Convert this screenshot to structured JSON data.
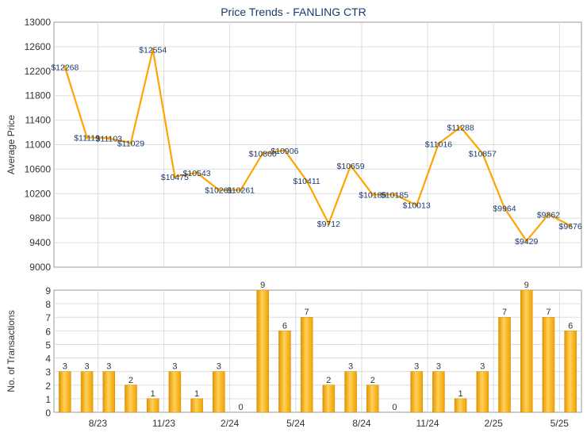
{
  "chart_data": [
    {
      "type": "line",
      "title": "Price Trends - FANLING CTR",
      "ylabel": "Average Price",
      "ylim": [
        9000,
        13000
      ],
      "yticks": [
        9000,
        9400,
        9800,
        10200,
        10600,
        11000,
        11400,
        11800,
        12200,
        12600,
        13000
      ],
      "x_tick_labels": [
        "8/23",
        "11/23",
        "2/24",
        "5/24",
        "8/24",
        "11/24",
        "2/25",
        "5/25"
      ],
      "grid": true,
      "line_color": "#ffa500",
      "points": [
        {
          "value": 12268,
          "label": "$12268"
        },
        {
          "value": 11119,
          "label": "$11119"
        },
        {
          "value": 11103,
          "label": "$11103"
        },
        {
          "value": 11029,
          "label": "$11029"
        },
        {
          "value": 12554,
          "label": "$12554"
        },
        {
          "value": 10475,
          "label": "$10475"
        },
        {
          "value": 10543,
          "label": "$10543"
        },
        {
          "value": 10261,
          "label": "$10261"
        },
        {
          "value": 10261,
          "label": "$10261"
        },
        {
          "value": 10860,
          "label": "$10860"
        },
        {
          "value": 10906,
          "label": "$10906"
        },
        {
          "value": 10411,
          "label": "$10411"
        },
        {
          "value": 9712,
          "label": "$9712"
        },
        {
          "value": 10659,
          "label": "$10659"
        },
        {
          "value": 10185,
          "label": "$10185"
        },
        {
          "value": 10185,
          "label": "$10185"
        },
        {
          "value": 10013,
          "label": "$10013"
        },
        {
          "value": 11016,
          "label": "$11016"
        },
        {
          "value": 11288,
          "label": "$11288"
        },
        {
          "value": 10857,
          "label": "$10857"
        },
        {
          "value": 9964,
          "label": "$9964"
        },
        {
          "value": 9429,
          "label": "$9429"
        },
        {
          "value": 9862,
          "label": "$9862"
        },
        {
          "value": 9676,
          "label": "$9676"
        }
      ]
    },
    {
      "type": "bar",
      "ylabel": "No. of Transactions",
      "ylim": [
        0,
        9
      ],
      "yticks": [
        0,
        1,
        2,
        3,
        4,
        5,
        6,
        7,
        8,
        9
      ],
      "x_tick_labels": [
        "8/23",
        "11/23",
        "2/24",
        "5/24",
        "8/24",
        "11/24",
        "2/25",
        "5/25"
      ],
      "grid": true,
      "bar_color": "#f5a800",
      "values": [
        3,
        3,
        3,
        2,
        1,
        3,
        1,
        3,
        0,
        9,
        6,
        7,
        2,
        3,
        2,
        0,
        3,
        3,
        1,
        3,
        7,
        9,
        7,
        6
      ]
    }
  ]
}
